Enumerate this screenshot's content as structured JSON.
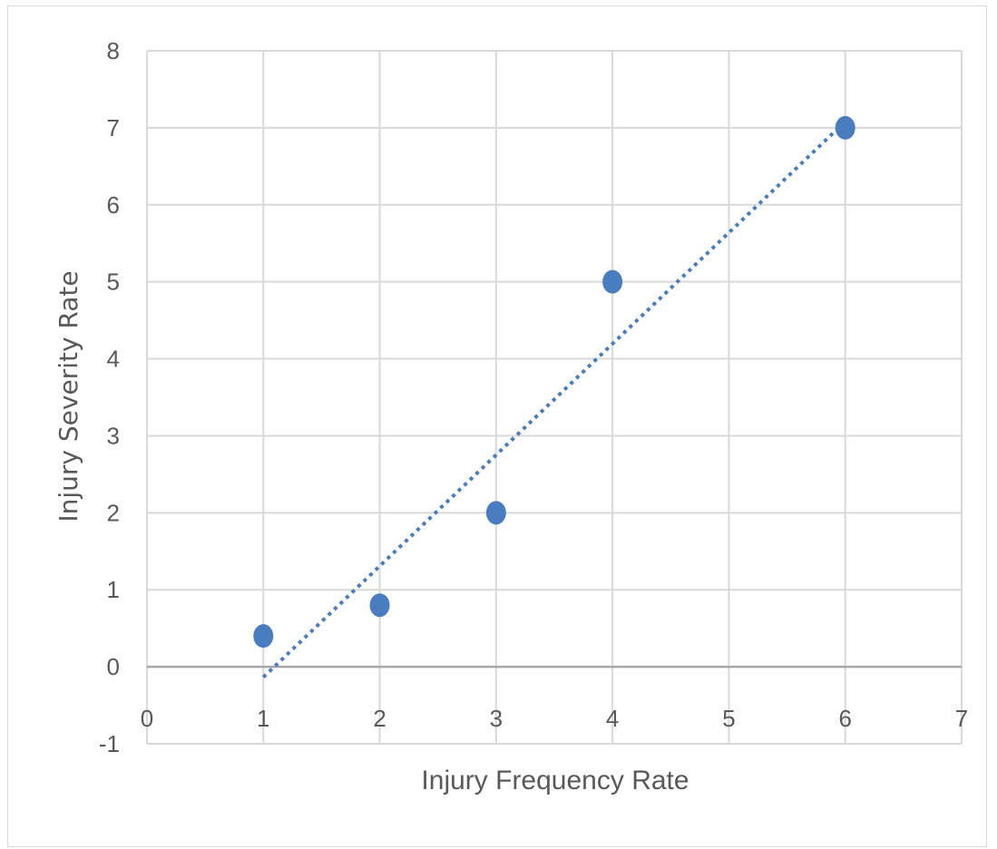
{
  "chart_data": {
    "type": "scatter",
    "xlabel": "Injury Frequency Rate",
    "ylabel": "Injury Severity Rate",
    "xlim": [
      0,
      7
    ],
    "ylim": [
      -1,
      8
    ],
    "x_ticks": [
      "0",
      "1",
      "2",
      "3",
      "4",
      "5",
      "6",
      "7"
    ],
    "y_ticks": [
      "-1",
      "0",
      "1",
      "2",
      "3",
      "4",
      "5",
      "6",
      "7",
      "8"
    ],
    "grid": true,
    "legend": "none",
    "series": [
      {
        "points": [
          {
            "x": 1,
            "y": 0.4
          },
          {
            "x": 2,
            "y": 0.8
          },
          {
            "x": 3,
            "y": 2
          },
          {
            "x": 4,
            "y": 5
          },
          {
            "x": 6,
            "y": 7
          }
        ],
        "trendline": {
          "type": "linear",
          "x_start": 1,
          "x_end": 6,
          "style": "dotted"
        }
      }
    ],
    "colors": {
      "marker": "#4a7cc0",
      "trendline": "#4a7cc0",
      "grid": "#d9d9d9",
      "zero_axis": "#a6a6a6",
      "text": "#595959"
    }
  }
}
